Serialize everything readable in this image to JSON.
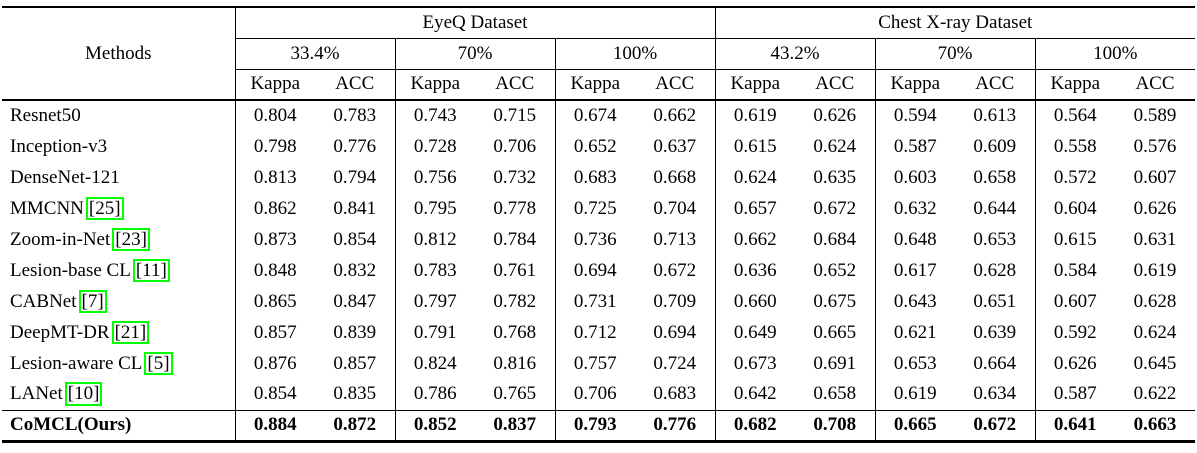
{
  "colors": {
    "citation_border": "#00ff00",
    "text": "#000000",
    "background": "#ffffff"
  },
  "table": {
    "methods_header": "Methods",
    "metric_labels": [
      "Kappa",
      "ACC"
    ],
    "col_groups": [
      {
        "label": "EyeQ Dataset",
        "percents": [
          "33.4%",
          "70%",
          "100%"
        ]
      },
      {
        "label": "Chest X-ray Dataset",
        "percents": [
          "43.2%",
          "70%",
          "100%"
        ]
      }
    ],
    "rows": [
      {
        "method": "Resnet50",
        "citation": null,
        "bold": false,
        "values": [
          "0.804",
          "0.783",
          "0.743",
          "0.715",
          "0.674",
          "0.662",
          "0.619",
          "0.626",
          "0.594",
          "0.613",
          "0.564",
          "0.589"
        ]
      },
      {
        "method": "Inception-v3",
        "citation": null,
        "bold": false,
        "values": [
          "0.798",
          "0.776",
          "0.728",
          "0.706",
          "0.652",
          "0.637",
          "0.615",
          "0.624",
          "0.587",
          "0.609",
          "0.558",
          "0.576"
        ]
      },
      {
        "method": "DenseNet-121",
        "citation": null,
        "bold": false,
        "values": [
          "0.813",
          "0.794",
          "0.756",
          "0.732",
          "0.683",
          "0.668",
          "0.624",
          "0.635",
          "0.603",
          "0.658",
          "0.572",
          "0.607"
        ]
      },
      {
        "method": "MMCNN",
        "citation": "[25]",
        "bold": false,
        "values": [
          "0.862",
          "0.841",
          "0.795",
          "0.778",
          "0.725",
          "0.704",
          "0.657",
          "0.672",
          "0.632",
          "0.644",
          "0.604",
          "0.626"
        ]
      },
      {
        "method": "Zoom-in-Net",
        "citation": "[23]",
        "bold": false,
        "values": [
          "0.873",
          "0.854",
          "0.812",
          "0.784",
          "0.736",
          "0.713",
          "0.662",
          "0.684",
          "0.648",
          "0.653",
          "0.615",
          "0.631"
        ]
      },
      {
        "method": "Lesion-base CL",
        "citation": "[11]",
        "bold": false,
        "values": [
          "0.848",
          "0.832",
          "0.783",
          "0.761",
          "0.694",
          "0.672",
          "0.636",
          "0.652",
          "0.617",
          "0.628",
          "0.584",
          "0.619"
        ]
      },
      {
        "method": "CABNet",
        "citation": "[7]",
        "bold": false,
        "values": [
          "0.865",
          "0.847",
          "0.797",
          "0.782",
          "0.731",
          "0.709",
          "0.660",
          "0.675",
          "0.643",
          "0.651",
          "0.607",
          "0.628"
        ]
      },
      {
        "method": "DeepMT-DR",
        "citation": "[21]",
        "bold": false,
        "values": [
          "0.857",
          "0.839",
          "0.791",
          "0.768",
          "0.712",
          "0.694",
          "0.649",
          "0.665",
          "0.621",
          "0.639",
          "0.592",
          "0.624"
        ]
      },
      {
        "method": "Lesion-aware CL",
        "citation": "[5]",
        "bold": false,
        "values": [
          "0.876",
          "0.857",
          "0.824",
          "0.816",
          "0.757",
          "0.724",
          "0.673",
          "0.691",
          "0.653",
          "0.664",
          "0.626",
          "0.645"
        ]
      },
      {
        "method": "LANet",
        "citation": "[10]",
        "bold": false,
        "values": [
          "0.854",
          "0.835",
          "0.786",
          "0.765",
          "0.706",
          "0.683",
          "0.642",
          "0.658",
          "0.619",
          "0.634",
          "0.587",
          "0.622"
        ]
      },
      {
        "method": "CoMCL(Ours)",
        "citation": null,
        "bold": true,
        "values": [
          "0.884",
          "0.872",
          "0.852",
          "0.837",
          "0.793",
          "0.776",
          "0.682",
          "0.708",
          "0.665",
          "0.672",
          "0.641",
          "0.663"
        ]
      }
    ]
  }
}
